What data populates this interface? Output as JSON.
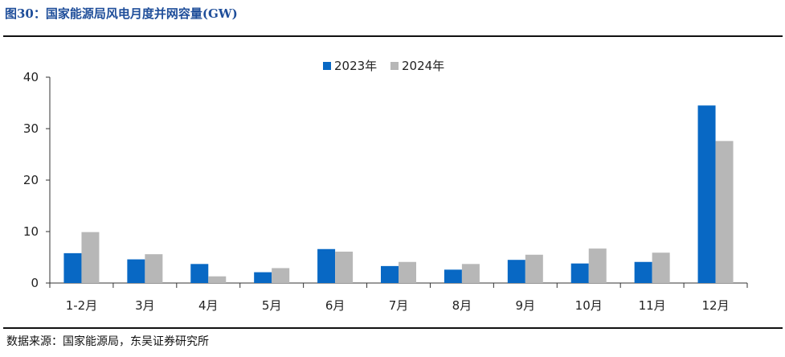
{
  "title": "图30：国家能源局风电月度并网容量(GW)",
  "source": "数据来源：国家能源局，东吴证券研究所",
  "chart_data": {
    "type": "bar",
    "title": "图30：国家能源局风电月度并网容量(GW)",
    "xlabel": "",
    "ylabel": "",
    "ylim": [
      0,
      40
    ],
    "yticks": [
      "0",
      "10",
      "20",
      "30",
      "40"
    ],
    "grid": false,
    "legend_position": "top-center",
    "categories": [
      "1-2月",
      "3月",
      "4月",
      "5月",
      "6月",
      "7月",
      "8月",
      "9月",
      "10月",
      "11月",
      "12月"
    ],
    "series": [
      {
        "name": "2023年",
        "color": "#0868c4",
        "values": [
          5.8,
          4.6,
          3.7,
          2.1,
          6.6,
          3.3,
          2.6,
          4.5,
          3.8,
          4.1,
          34.5
        ]
      },
      {
        "name": "2024年",
        "color": "#b7b7b7",
        "values": [
          9.9,
          5.6,
          1.3,
          2.9,
          6.1,
          4.1,
          3.7,
          5.5,
          6.7,
          5.9,
          27.6
        ]
      }
    ]
  }
}
